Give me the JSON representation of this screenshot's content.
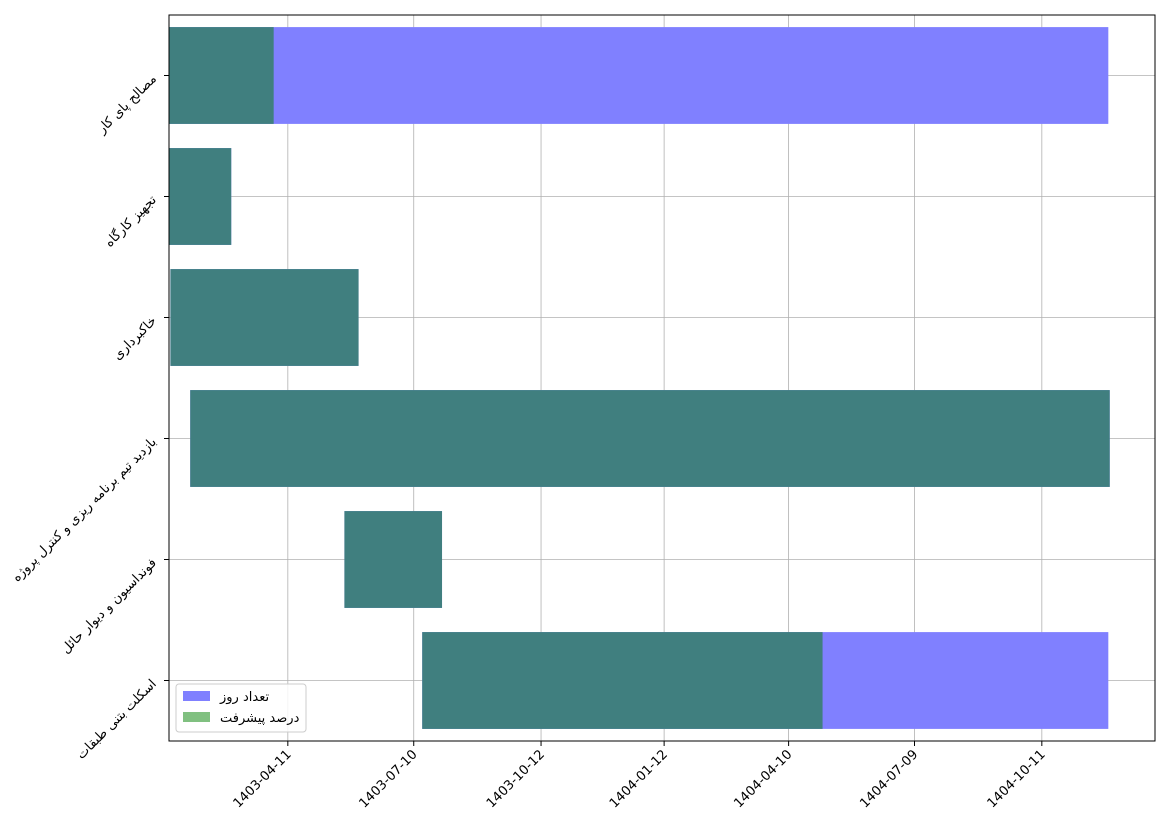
{
  "chart_data": {
    "type": "bar",
    "orientation": "horizontal",
    "gantt": true,
    "grid": true,
    "legend_position": "lower-left",
    "categories": [
      "مصالح پای کار",
      "تجهیز کارگاه",
      "خاکبرداری",
      "بازدید تیم برنامه ریزی و کنترل پروژه",
      "فونداسیون و دیوار حائل",
      "اسکلت بتنی طبقات"
    ],
    "x_ticks": [
      "1403-04-11",
      "1403-07-10",
      "1403-10-12",
      "1404-01-12",
      "1404-04-10",
      "1404-07-09",
      "1404-10-11"
    ],
    "x_tick_days": [
      101,
      190,
      280,
      367,
      455,
      544,
      634
    ],
    "xlim_days": [
      17,
      714
    ],
    "series": [
      {
        "name": "تعداد روز",
        "color": "#8080ff",
        "start_days": [
          17,
          17,
          18,
          32,
          141,
          196
        ],
        "durations": [
          664,
          44,
          133,
          650,
          69,
          485
        ]
      },
      {
        "name": "درصد پیشرفت",
        "color": "#80c080",
        "start_days": [
          17,
          17,
          18,
          32,
          141,
          196
        ],
        "durations": [
          74,
          44,
          133,
          650,
          69,
          283
        ]
      }
    ]
  }
}
